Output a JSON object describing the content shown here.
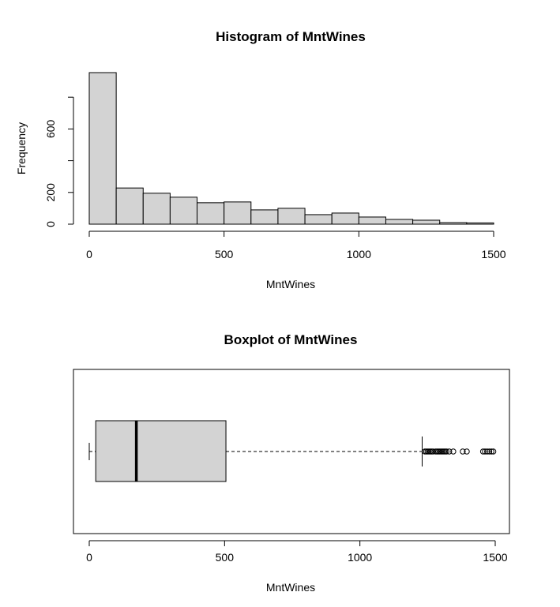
{
  "chart_data": [
    {
      "type": "histogram",
      "title": "Histogram of MntWines",
      "xlabel": "MntWines",
      "ylabel": "Frequency",
      "bin_width": 100,
      "bin_edges": [
        0,
        100,
        200,
        300,
        400,
        500,
        600,
        700,
        800,
        900,
        1000,
        1100,
        1200,
        1300,
        1400,
        1500
      ],
      "counts": [
        955,
        228,
        195,
        170,
        135,
        140,
        90,
        100,
        60,
        70,
        45,
        30,
        25,
        10,
        8
      ],
      "x_ticks": [
        0,
        500,
        1000,
        1500
      ],
      "x_tick_labels": [
        "0",
        "500",
        "1000",
        "1500"
      ],
      "y_ticks": [
        0,
        200,
        400,
        600,
        800
      ],
      "y_tick_labels": [
        "0",
        "200",
        "",
        "600",
        ""
      ],
      "xlim": [
        0,
        1500
      ],
      "ylim": [
        0,
        955
      ],
      "grid": false,
      "bar_color": "#d3d3d3"
    },
    {
      "type": "boxplot",
      "orientation": "horizontal",
      "title": "Boxplot of MntWines",
      "xlabel": "MntWines",
      "whisker_low": 0,
      "q1": 24,
      "median": 174,
      "q3": 505,
      "whisker_high": 1230,
      "outliers": [
        1240,
        1245,
        1250,
        1255,
        1260,
        1265,
        1270,
        1280,
        1285,
        1290,
        1295,
        1300,
        1305,
        1310,
        1315,
        1320,
        1330,
        1345,
        1380,
        1395,
        1455,
        1462,
        1470,
        1478,
        1486,
        1493
      ],
      "x_ticks": [
        0,
        500,
        1000,
        1500
      ],
      "x_tick_labels": [
        "0",
        "500",
        "1000",
        "1500"
      ],
      "xlim": [
        -60,
        1552
      ],
      "box_color": "#d3d3d3"
    }
  ]
}
